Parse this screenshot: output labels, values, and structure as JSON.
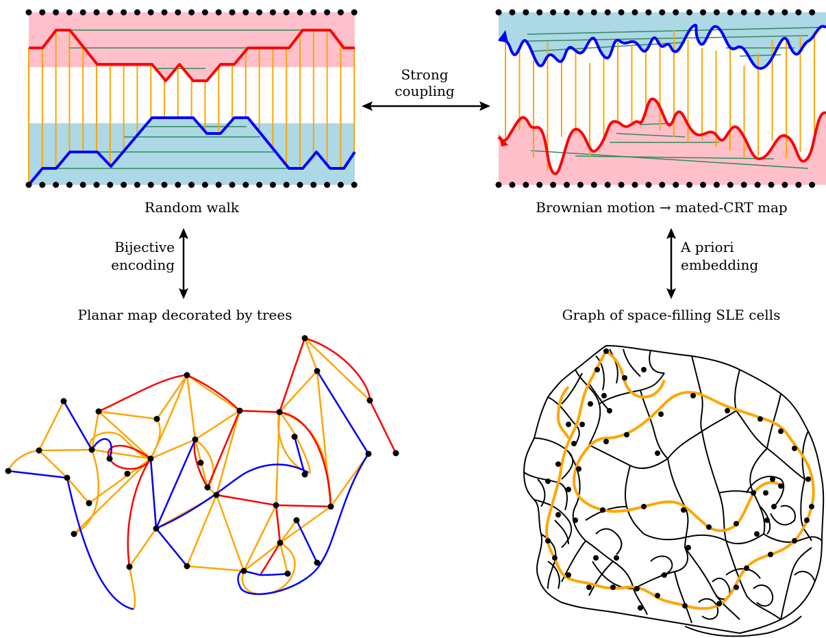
{
  "labels": {
    "random_walk": "Random walk",
    "brownian": "Brownian motion → mated-CRT map",
    "strong_coupling_1": "Strong",
    "strong_coupling_2": "coupling",
    "bijective_1": "Bijective",
    "bijective_2": "encoding",
    "a_priori_1": "A priori",
    "a_priori_2": "embedding",
    "planar_map": "Planar map decorated by trees",
    "sle_graph": "Graph of space-filling SLE cells"
  },
  "colors": {
    "upper_walk": "#ff0000",
    "lower_walk": "#0000ff",
    "upper_fill": "#ffc0cb",
    "lower_fill": "#add8e6",
    "vertical_edges": "#ffa500",
    "horizontal_edges": "#2e8b57",
    "vertex": "#000000",
    "cell_boundary": "#000000"
  }
}
